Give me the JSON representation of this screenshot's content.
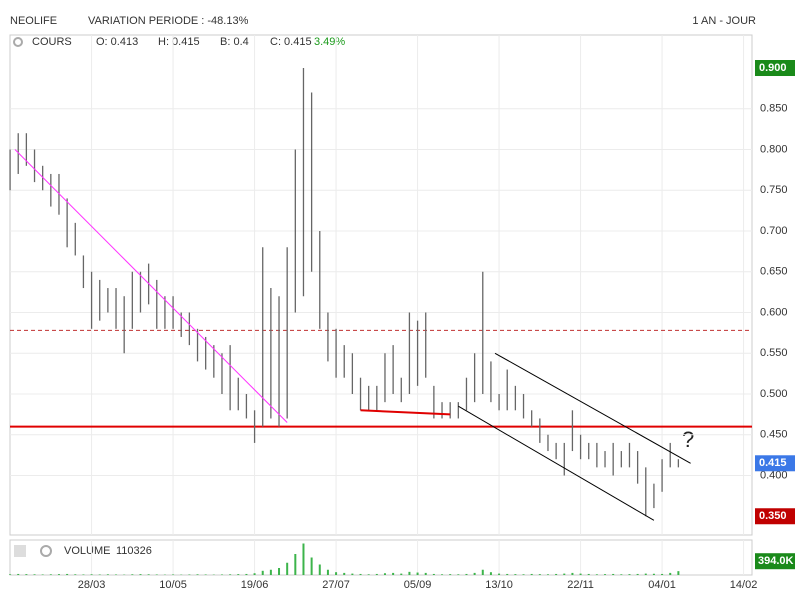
{
  "chart_data": {
    "type": "ohlc",
    "header": {
      "name": "NEOLIFE",
      "variation": "VARIATION PERIODE : -48.13%",
      "period": "1 AN - JOUR"
    },
    "legend": {
      "label": "COURS",
      "open": "O: 0.413",
      "high": "H: 0.415",
      "low": "B: 0.4",
      "close": "C: 0.415",
      "change": "3.49%"
    },
    "volume_legend": {
      "label": "VOLUME",
      "value": "110326"
    },
    "annotation": "?",
    "categories": [
      null,
      null,
      null,
      null,
      null,
      null,
      null,
      null,
      null,
      null,
      "28/03",
      null,
      null,
      null,
      null,
      null,
      null,
      null,
      null,
      null,
      "10/05",
      null,
      null,
      null,
      null,
      null,
      null,
      null,
      null,
      null,
      "19/06",
      null,
      null,
      null,
      null,
      null,
      null,
      null,
      null,
      null,
      "27/07",
      null,
      null,
      null,
      null,
      null,
      null,
      null,
      null,
      null,
      "05/09",
      null,
      null,
      null,
      null,
      null,
      null,
      null,
      null,
      null,
      "13/10",
      null,
      null,
      null,
      null,
      null,
      null,
      null,
      null,
      null,
      "22/11",
      null,
      null,
      null,
      null,
      null,
      null,
      null,
      null,
      null,
      "04/01",
      null,
      null,
      null,
      null,
      null,
      null,
      null,
      null,
      null,
      "14/02"
    ],
    "series": [
      {
        "name": "high",
        "color": "#666666",
        "values": [
          0.8,
          0.82,
          0.82,
          0.8,
          0.78,
          0.77,
          0.77,
          0.74,
          0.71,
          0.67,
          0.65,
          0.64,
          0.63,
          0.63,
          0.62,
          0.65,
          0.65,
          0.66,
          0.64,
          0.62,
          0.62,
          0.6,
          0.6,
          0.58,
          0.57,
          0.56,
          0.55,
          0.56,
          0.52,
          0.5,
          0.48,
          0.68,
          0.63,
          0.62,
          0.68,
          0.8,
          0.9,
          0.87,
          0.7,
          0.6,
          0.58,
          0.56,
          0.55,
          0.52,
          0.51,
          0.51,
          0.55,
          0.56,
          0.52,
          0.6,
          0.59,
          0.6,
          0.51,
          0.49,
          0.49,
          0.49,
          0.52,
          0.55,
          0.65,
          0.54,
          0.5,
          0.53,
          0.51,
          0.5,
          0.48,
          0.47,
          0.45,
          0.44,
          0.44,
          0.48,
          0.45,
          0.44,
          0.44,
          0.43,
          0.44,
          0.43,
          0.44,
          0.43,
          0.41,
          0.39,
          0.42,
          0.44,
          0.42,
          null,
          null,
          null,
          null,
          null,
          null,
          null,
          null
        ]
      },
      {
        "name": "low",
        "color": "#666666",
        "values": [
          0.75,
          0.77,
          0.78,
          0.76,
          0.75,
          0.73,
          0.72,
          0.68,
          0.67,
          0.63,
          0.58,
          0.59,
          0.6,
          0.58,
          0.55,
          0.58,
          0.6,
          0.61,
          0.58,
          0.58,
          0.58,
          0.57,
          0.56,
          0.54,
          0.53,
          0.52,
          0.5,
          0.48,
          0.48,
          0.47,
          0.44,
          0.46,
          0.47,
          0.46,
          0.47,
          0.6,
          0.62,
          0.65,
          0.58,
          0.54,
          0.52,
          0.52,
          0.5,
          0.48,
          0.48,
          0.48,
          0.49,
          0.5,
          0.49,
          0.5,
          0.51,
          0.52,
          0.47,
          0.47,
          0.47,
          0.47,
          0.48,
          0.49,
          0.5,
          0.49,
          0.48,
          0.48,
          0.48,
          0.47,
          0.46,
          0.44,
          0.43,
          0.42,
          0.4,
          0.43,
          0.42,
          0.42,
          0.41,
          0.41,
          0.4,
          0.41,
          0.41,
          0.39,
          0.35,
          0.36,
          0.38,
          0.41,
          0.41,
          null,
          null,
          null,
          null,
          null,
          null,
          null,
          null
        ]
      },
      {
        "name": "volume",
        "color": "#3cb44b",
        "values": [
          20,
          30,
          25,
          20,
          15,
          20,
          25,
          30,
          20,
          15,
          20,
          15,
          20,
          15,
          10,
          20,
          25,
          20,
          15,
          10,
          15,
          10,
          15,
          20,
          15,
          10,
          15,
          20,
          25,
          30,
          50,
          120,
          150,
          200,
          350,
          600,
          900,
          500,
          300,
          150,
          80,
          60,
          40,
          30,
          20,
          30,
          50,
          60,
          40,
          90,
          70,
          60,
          30,
          20,
          25,
          20,
          30,
          60,
          150,
          80,
          40,
          30,
          25,
          20,
          30,
          25,
          20,
          30,
          40,
          60,
          40,
          30,
          20,
          25,
          30,
          20,
          25,
          30,
          40,
          35,
          30,
          60,
          110,
          null,
          null,
          null,
          null,
          null,
          null,
          null,
          null
        ]
      }
    ],
    "ylim": [
      0.327,
      0.9405
    ],
    "yticks": [
      {
        "value": 0.4,
        "label": "0.400"
      },
      {
        "value": 0.45,
        "label": "0.450"
      },
      {
        "value": 0.5,
        "label": "0.500"
      },
      {
        "value": 0.55,
        "label": "0.550"
      },
      {
        "value": 0.6,
        "label": "0.600"
      },
      {
        "value": 0.65,
        "label": "0.650"
      },
      {
        "value": 0.7,
        "label": "0.700"
      },
      {
        "value": 0.75,
        "label": "0.750"
      },
      {
        "value": 0.8,
        "label": "0.800"
      },
      {
        "value": 0.85,
        "label": "0.850"
      }
    ],
    "price_tags": [
      {
        "value": 0.9,
        "label": "0.900",
        "color": "#1a8a1a"
      },
      {
        "value": 0.415,
        "label": "0.415",
        "color": "#3b78e7"
      },
      {
        "value": 0.35,
        "label": "0.350",
        "color": "#c00000"
      }
    ],
    "volume_ylim": [
      0,
      1000
    ],
    "volume_tag": {
      "value": 394,
      "label": "394.0K",
      "color": "#1a8a1a"
    },
    "hlines": [
      {
        "value": 0.46,
        "color": "#e00000",
        "style": "solid"
      },
      {
        "value": 0.578,
        "color": "#c03030",
        "style": "dashed"
      }
    ],
    "trendlines": [
      {
        "x": [
          0.6,
          34
        ],
        "y": [
          0.8,
          0.465
        ],
        "color": "#ff33ff"
      },
      {
        "x": [
          43,
          54
        ],
        "y": [
          0.48,
          0.475
        ],
        "color": "#e00000"
      },
      {
        "x": [
          59.5,
          83.5
        ],
        "y": [
          0.55,
          0.415
        ],
        "color": "#000000"
      },
      {
        "x": [
          55,
          79
        ],
        "y": [
          0.485,
          0.345
        ],
        "color": "#000000"
      }
    ],
    "grid": true
  }
}
